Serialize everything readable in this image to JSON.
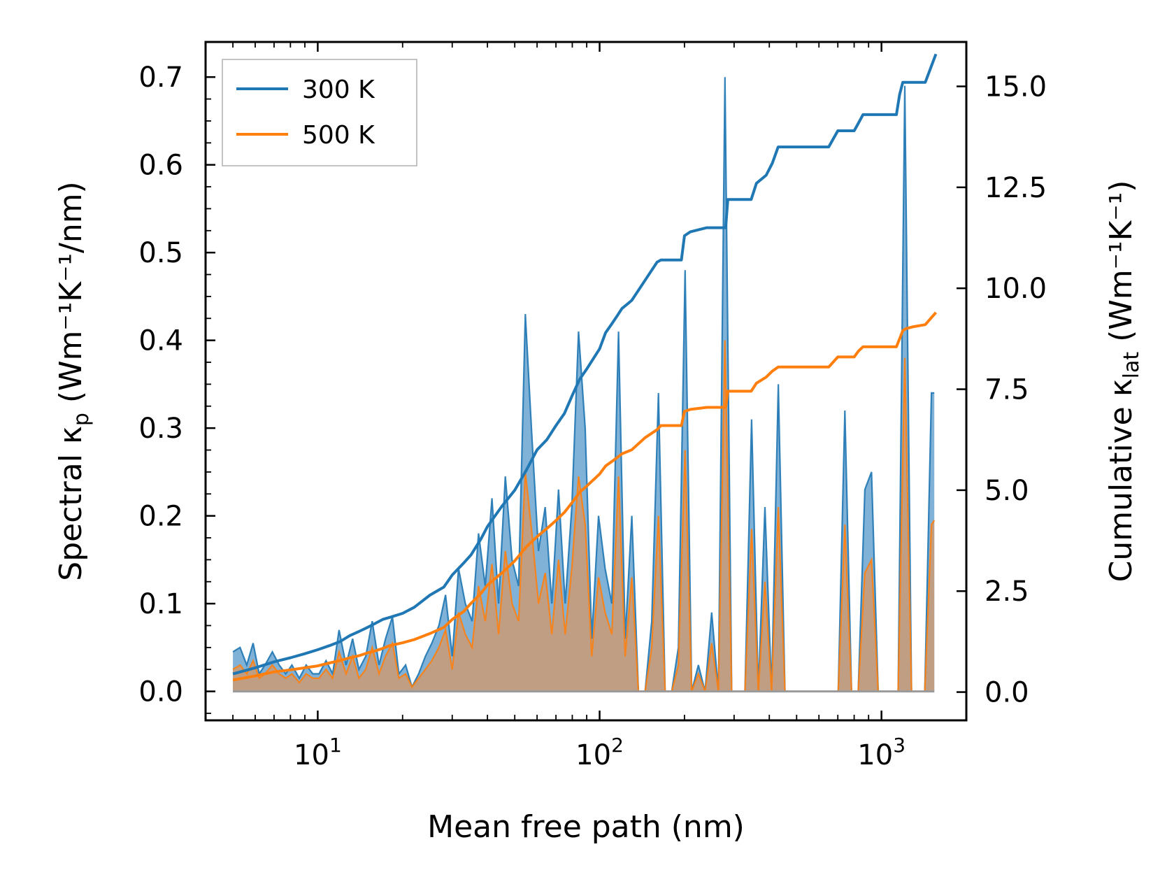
{
  "chart_data": {
    "type": "line",
    "title": "",
    "xlabel": "Mean free path (nm)",
    "ylabel_left": {
      "base": "Spectral κ",
      "sub": "p",
      "unit": " (Wm⁻¹K⁻¹/nm)"
    },
    "ylabel_right": {
      "base": "Cumulative κ",
      "sub": "lat",
      "unit": " (Wm⁻¹K⁻¹)"
    },
    "xscale": "log",
    "xlim": [
      4.0,
      2000
    ],
    "ylim_left": [
      -0.033,
      0.74
    ],
    "ylim_right": [
      -0.7,
      16.1
    ],
    "x_ticks": [
      {
        "value": 10,
        "base": "10",
        "exp": "1"
      },
      {
        "value": 100,
        "base": "10",
        "exp": "2"
      },
      {
        "value": 1000,
        "base": "10",
        "exp": "3"
      }
    ],
    "y_ticks_left": [
      "0.0",
      "0.1",
      "0.2",
      "0.3",
      "0.4",
      "0.5",
      "0.6",
      "0.7"
    ],
    "y_ticks_right": [
      "0.0",
      "2.5",
      "5.0",
      "7.5",
      "10.0",
      "12.5",
      "15.0"
    ],
    "legend": {
      "position": "top-left",
      "entries": [
        "300 K",
        "500 K"
      ]
    },
    "colors": {
      "series_300K": "#1f77b4",
      "series_500K": "#ff7f0e",
      "fill_300K": "#6aa3cf",
      "fill_500K": "#cf9a6e"
    },
    "spectral_series": [
      {
        "name": "300 K",
        "x": [
          5.0,
          5.3,
          5.6,
          5.9,
          6.2,
          6.5,
          6.9,
          7.3,
          7.7,
          8.1,
          8.6,
          9.1,
          9.6,
          10.1,
          10.7,
          11.3,
          11.9,
          12.6,
          13.3,
          14.0,
          14.8,
          15.6,
          16.5,
          17.4,
          18.4,
          19.4,
          20.5,
          21.6,
          22.8,
          24.1,
          25.4,
          26.9,
          28.4,
          30.0,
          31.6,
          33.4,
          35.3,
          37.2,
          39.3,
          41.5,
          43.8,
          46.3,
          48.9,
          51.6,
          54.5,
          57.5,
          60.7,
          64.1,
          67.7,
          71.5,
          75.5,
          79.7,
          84.2,
          88.9,
          93.8,
          99.1,
          104.6,
          110.5,
          116.7,
          123.2,
          130.1,
          137.3,
          145.0,
          153.1,
          161.7,
          170.7,
          180.3,
          190.3,
          201.0,
          212.2,
          224.1,
          236.6,
          249.8,
          263.8,
          278.5,
          294.1,
          310.6,
          327.9,
          346.2,
          365.6,
          386.0,
          407.6,
          430.4,
          454.5,
          479.9,
          506.7,
          535.0,
          564.9,
          596.5,
          629.9,
          665.1,
          702.3,
          741.6,
          783.0,
          826.8,
          873.0,
          921.9,
          973.4,
          1027.8,
          1085.3,
          1146.0,
          1210.1,
          1277.7,
          1349.2,
          1424.6,
          1504.3,
          1540.0
        ],
        "y": [
          0.045,
          0.05,
          0.03,
          0.055,
          0.02,
          0.03,
          0.045,
          0.03,
          0.02,
          0.03,
          0.015,
          0.03,
          0.02,
          0.02,
          0.035,
          0.02,
          0.07,
          0.03,
          0.06,
          0.025,
          0.04,
          0.08,
          0.03,
          0.06,
          0.085,
          0.02,
          0.03,
          0.005,
          0.02,
          0.04,
          0.055,
          0.075,
          0.11,
          0.04,
          0.14,
          0.1,
          0.08,
          0.18,
          0.12,
          0.22,
          0.1,
          0.245,
          0.15,
          0.12,
          0.43,
          0.29,
          0.16,
          0.21,
          0.1,
          0.23,
          0.1,
          0.21,
          0.41,
          0.3,
          0.06,
          0.2,
          0.14,
          0.1,
          0.41,
          0.06,
          0.2,
          0.0,
          0.0,
          0.08,
          0.34,
          0.0,
          0.0,
          0.05,
          0.48,
          0.0,
          0.03,
          0.0,
          0.09,
          0.0,
          0.7,
          0.0,
          0.0,
          0.0,
          0.31,
          0.0,
          0.21,
          0.0,
          0.35,
          0.0,
          0.0,
          0.0,
          0.0,
          0.0,
          0.0,
          0.0,
          0.0,
          0.0,
          0.32,
          0.0,
          0.0,
          0.23,
          0.25,
          0.0,
          0.0,
          0.0,
          0.0,
          0.69,
          0.0,
          0.0,
          0.0,
          0.34,
          0.34
        ]
      },
      {
        "name": "500 K",
        "x": [
          5.0,
          5.3,
          5.6,
          5.9,
          6.2,
          6.5,
          6.9,
          7.3,
          7.7,
          8.1,
          8.6,
          9.1,
          9.6,
          10.1,
          10.7,
          11.3,
          11.9,
          12.6,
          13.3,
          14.0,
          14.8,
          15.6,
          16.5,
          17.4,
          18.4,
          19.4,
          20.5,
          21.6,
          22.8,
          24.1,
          25.4,
          26.9,
          28.4,
          30.0,
          31.6,
          33.4,
          35.3,
          37.2,
          39.3,
          41.5,
          43.8,
          46.3,
          48.9,
          51.6,
          54.5,
          57.5,
          60.7,
          64.1,
          67.7,
          71.5,
          75.5,
          79.7,
          84.2,
          88.9,
          93.8,
          99.1,
          104.6,
          110.5,
          116.7,
          123.2,
          130.1,
          137.3,
          145.0,
          153.1,
          161.7,
          170.7,
          180.3,
          190.3,
          201.0,
          212.2,
          224.1,
          236.6,
          249.8,
          263.8,
          278.5,
          294.1,
          310.6,
          327.9,
          346.2,
          365.6,
          386.0,
          407.6,
          430.4,
          454.5,
          479.9,
          506.7,
          535.0,
          564.9,
          596.5,
          629.9,
          665.1,
          702.3,
          741.6,
          783.0,
          826.8,
          873.0,
          921.9,
          973.4,
          1027.8,
          1085.3,
          1146.0,
          1210.1,
          1277.7,
          1349.2,
          1424.6,
          1504.3,
          1540.0
        ],
        "y": [
          0.025,
          0.03,
          0.02,
          0.035,
          0.015,
          0.02,
          0.03,
          0.02,
          0.015,
          0.02,
          0.01,
          0.02,
          0.015,
          0.015,
          0.025,
          0.015,
          0.045,
          0.02,
          0.04,
          0.015,
          0.025,
          0.05,
          0.02,
          0.04,
          0.055,
          0.015,
          0.02,
          0.005,
          0.015,
          0.025,
          0.035,
          0.05,
          0.07,
          0.025,
          0.09,
          0.065,
          0.05,
          0.12,
          0.08,
          0.145,
          0.065,
          0.16,
          0.1,
          0.08,
          0.25,
          0.18,
          0.1,
          0.135,
          0.065,
          0.15,
          0.065,
          0.14,
          0.245,
          0.19,
          0.04,
          0.13,
          0.09,
          0.065,
          0.245,
          0.04,
          0.13,
          0.0,
          0.0,
          0.05,
          0.2,
          0.0,
          0.0,
          0.03,
          0.275,
          0.0,
          0.02,
          0.0,
          0.055,
          0.0,
          0.4,
          0.0,
          0.0,
          0.0,
          0.185,
          0.0,
          0.125,
          0.0,
          0.21,
          0.0,
          0.0,
          0.0,
          0.0,
          0.0,
          0.0,
          0.0,
          0.0,
          0.0,
          0.19,
          0.0,
          0.0,
          0.135,
          0.15,
          0.0,
          0.0,
          0.0,
          0.0,
          0.38,
          0.0,
          0.0,
          0.0,
          0.19,
          0.195
        ]
      }
    ],
    "cumulative_series": [
      {
        "name": "300 K",
        "x": [
          5.0,
          6.0,
          7.0,
          8.0,
          9.0,
          10.0,
          11.0,
          12.0,
          13.0,
          14.0,
          15.0,
          16.0,
          17.0,
          18.0,
          20.0,
          22.0,
          25.0,
          28.0,
          30.0,
          33.0,
          35.0,
          38.0,
          40.0,
          45.0,
          50.0,
          55.0,
          60.0,
          65.0,
          70.0,
          75.0,
          80.0,
          85.0,
          90.0,
          100.0,
          105.0,
          110.0,
          115.0,
          120.0,
          125.0,
          130.0,
          145.0,
          160.0,
          165.0,
          195.0,
          200.0,
          210.0,
          240.0,
          280.0,
          285.0,
          345.0,
          360.0,
          390.0,
          410.0,
          430.0,
          440.0,
          650.0,
          700.0,
          800.0,
          830.0,
          860.0,
          1130.0,
          1160.0,
          1190.0,
          1220.0,
          1300.0,
          1430.0,
          1560.0
        ],
        "y": [
          0.45,
          0.6,
          0.75,
          0.85,
          0.95,
          1.05,
          1.15,
          1.25,
          1.4,
          1.5,
          1.6,
          1.7,
          1.8,
          1.85,
          1.95,
          2.1,
          2.4,
          2.6,
          2.9,
          3.2,
          3.4,
          3.8,
          4.1,
          4.6,
          5.0,
          5.5,
          6.0,
          6.25,
          6.6,
          6.9,
          7.35,
          7.75,
          8.0,
          8.5,
          8.9,
          9.1,
          9.3,
          9.5,
          9.6,
          9.7,
          10.2,
          10.65,
          10.7,
          10.7,
          11.3,
          11.4,
          11.5,
          11.5,
          12.2,
          12.2,
          12.6,
          12.8,
          13.1,
          13.5,
          13.5,
          13.5,
          13.9,
          13.9,
          14.1,
          14.3,
          14.3,
          14.8,
          15.1,
          15.1,
          15.1,
          15.1,
          15.8
        ]
      },
      {
        "name": "500 K",
        "x": [
          5.0,
          6.0,
          7.0,
          8.0,
          9.0,
          10.0,
          11.0,
          12.0,
          13.0,
          14.0,
          15.0,
          16.0,
          17.0,
          18.0,
          20.0,
          22.0,
          25.0,
          28.0,
          30.0,
          33.0,
          35.0,
          38.0,
          40.0,
          45.0,
          50.0,
          55.0,
          60.0,
          65.0,
          70.0,
          75.0,
          80.0,
          85.0,
          90.0,
          100.0,
          105.0,
          110.0,
          115.0,
          120.0,
          125.0,
          130.0,
          145.0,
          160.0,
          165.0,
          195.0,
          200.0,
          210.0,
          240.0,
          280.0,
          285.0,
          345.0,
          360.0,
          390.0,
          410.0,
          430.0,
          440.0,
          650.0,
          700.0,
          800.0,
          830.0,
          860.0,
          1130.0,
          1160.0,
          1190.0,
          1220.0,
          1300.0,
          1430.0,
          1560.0
        ],
        "y": [
          0.3,
          0.4,
          0.5,
          0.55,
          0.6,
          0.65,
          0.72,
          0.78,
          0.85,
          0.9,
          0.97,
          1.02,
          1.08,
          1.15,
          1.22,
          1.3,
          1.45,
          1.6,
          1.8,
          2.0,
          2.2,
          2.45,
          2.65,
          2.95,
          3.25,
          3.6,
          3.85,
          4.05,
          4.25,
          4.45,
          4.7,
          4.95,
          5.1,
          5.4,
          5.6,
          5.7,
          5.8,
          5.9,
          5.95,
          6.0,
          6.3,
          6.5,
          6.6,
          6.6,
          6.95,
          7.0,
          7.05,
          7.05,
          7.45,
          7.45,
          7.65,
          7.8,
          7.95,
          8.05,
          8.05,
          8.05,
          8.3,
          8.3,
          8.45,
          8.55,
          8.55,
          8.75,
          8.95,
          9.0,
          9.05,
          9.1,
          9.4
        ]
      }
    ]
  }
}
